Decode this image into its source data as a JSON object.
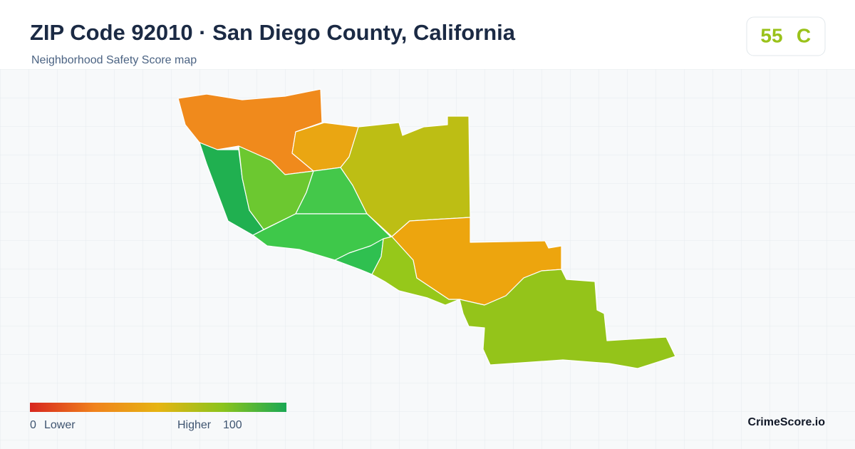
{
  "header": {
    "title": "ZIP Code 92010 · San Diego County, California",
    "subtitle": "Neighborhood Safety Score map"
  },
  "score": {
    "value": 55,
    "grade": "C"
  },
  "legend": {
    "min": 0,
    "min_label": "Lower",
    "max_label": "Higher",
    "max": 100
  },
  "brand": "CrimeScore.io"
}
